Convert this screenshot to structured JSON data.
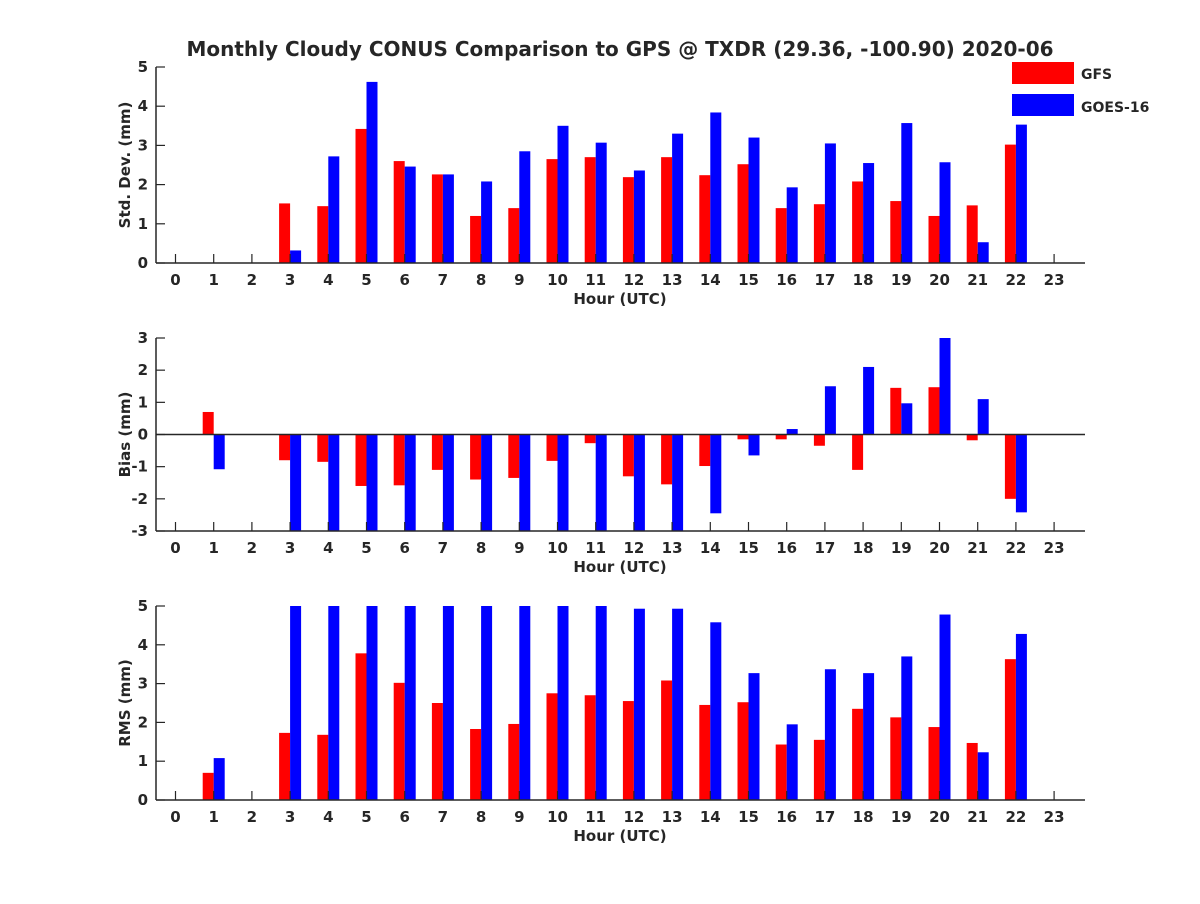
{
  "title": "Monthly Cloudy CONUS Comparison to GPS @ TXDR (29.36, -100.90) 2020-06",
  "legend": [
    {
      "name": "GFS",
      "color": "#ff0000"
    },
    {
      "name": "GOES-16",
      "color": "#0000ff"
    }
  ],
  "chart_data": [
    {
      "type": "bar",
      "ylabel": "Std. Dev. (mm)",
      "xlabel": "Hour (UTC)",
      "ylim": [
        0,
        5
      ],
      "yticks": [
        0,
        1,
        2,
        3,
        4,
        5
      ],
      "categories": [
        "0",
        "1",
        "2",
        "3",
        "4",
        "5",
        "6",
        "7",
        "8",
        "9",
        "10",
        "11",
        "12",
        "13",
        "14",
        "15",
        "16",
        "17",
        "18",
        "19",
        "20",
        "21",
        "22",
        "23"
      ],
      "series": [
        {
          "name": "GFS",
          "values": [
            null,
            null,
            null,
            1.52,
            1.45,
            3.42,
            2.6,
            2.26,
            1.2,
            1.4,
            2.65,
            2.7,
            2.19,
            2.7,
            2.24,
            2.52,
            1.4,
            1.5,
            2.08,
            1.58,
            1.2,
            1.47,
            3.02,
            null
          ]
        },
        {
          "name": "GOES-16",
          "values": [
            null,
            null,
            null,
            0.32,
            2.72,
            4.62,
            2.46,
            2.26,
            2.08,
            2.85,
            3.5,
            3.07,
            2.36,
            3.3,
            3.84,
            3.2,
            1.93,
            3.05,
            2.55,
            3.57,
            2.57,
            0.53,
            3.53,
            null
          ]
        }
      ]
    },
    {
      "type": "bar",
      "ylabel": "Bias (mm)",
      "xlabel": "Hour (UTC)",
      "ylim": [
        -3,
        3
      ],
      "yticks": [
        -3,
        -2,
        -1,
        0,
        1,
        2,
        3
      ],
      "categories": [
        "0",
        "1",
        "2",
        "3",
        "4",
        "5",
        "6",
        "7",
        "8",
        "9",
        "10",
        "11",
        "12",
        "13",
        "14",
        "15",
        "16",
        "17",
        "18",
        "19",
        "20",
        "21",
        "22",
        "23"
      ],
      "series": [
        {
          "name": "GFS",
          "values": [
            null,
            0.7,
            null,
            -0.8,
            -0.85,
            -1.6,
            -1.58,
            -1.1,
            -1.4,
            -1.35,
            -0.82,
            -0.27,
            -1.3,
            -1.55,
            -0.98,
            -0.15,
            -0.15,
            -0.35,
            -1.1,
            1.45,
            1.47,
            -0.18,
            -2.0,
            null
          ]
        },
        {
          "name": "GOES-16",
          "values": [
            null,
            -1.08,
            null,
            -3.0,
            -3.0,
            -3.0,
            -3.0,
            -3.0,
            -3.0,
            -3.0,
            -3.0,
            -3.0,
            -3.0,
            -3.0,
            -2.45,
            -0.65,
            0.17,
            1.5,
            2.1,
            0.97,
            3.0,
            1.1,
            -2.42,
            null
          ]
        }
      ]
    },
    {
      "type": "bar",
      "ylabel": "RMS (mm)",
      "xlabel": "Hour (UTC)",
      "ylim": [
        0,
        5
      ],
      "yticks": [
        0,
        1,
        2,
        3,
        4,
        5
      ],
      "categories": [
        "0",
        "1",
        "2",
        "3",
        "4",
        "5",
        "6",
        "7",
        "8",
        "9",
        "10",
        "11",
        "12",
        "13",
        "14",
        "15",
        "16",
        "17",
        "18",
        "19",
        "20",
        "21",
        "22",
        "23"
      ],
      "series": [
        {
          "name": "GFS",
          "values": [
            null,
            0.7,
            null,
            1.73,
            1.68,
            3.78,
            3.02,
            2.5,
            1.83,
            1.96,
            2.75,
            2.7,
            2.55,
            3.08,
            2.45,
            2.52,
            1.43,
            1.55,
            2.35,
            2.13,
            1.88,
            1.47,
            3.63,
            null
          ]
        },
        {
          "name": "GOES-16",
          "values": [
            null,
            1.08,
            null,
            5.0,
            5.0,
            5.0,
            5.0,
            5.0,
            5.0,
            5.0,
            5.0,
            5.0,
            4.93,
            4.93,
            4.58,
            3.27,
            1.95,
            3.37,
            3.27,
            3.7,
            4.78,
            1.23,
            4.28,
            null
          ]
        }
      ]
    }
  ]
}
